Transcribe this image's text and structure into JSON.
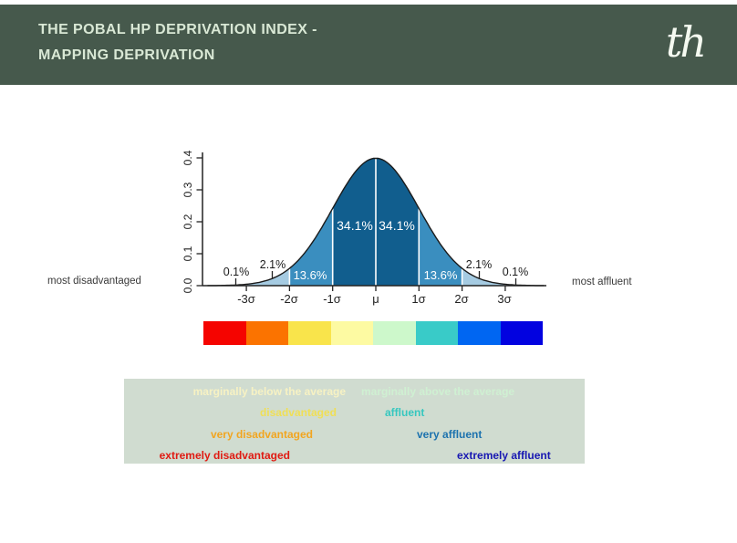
{
  "header": {
    "title_line1": "THE POBAL HP DEPRIVATION INDEX -",
    "title_line2": "MAPPING DEPRIVATION",
    "logo_text": "th",
    "bg_color": "#46594C",
    "title_color": "#D9E8D5",
    "logo_color": "#F5FAF1"
  },
  "chart_data": {
    "type": "area",
    "subtype": "standard-normal-distribution",
    "title": "",
    "xlabel": "",
    "ylabel": "",
    "ylim": [
      0.0,
      0.4
    ],
    "xlim_sigma": [
      -3.9,
      3.9
    ],
    "y_tick_labels": [
      "0.0",
      "0.1",
      "0.2",
      "0.3",
      "0.4"
    ],
    "x_tick_labels": [
      "-3σ",
      "-2σ",
      "-1σ",
      "μ",
      "1σ",
      "2σ",
      "3σ"
    ],
    "region_fills": [
      {
        "range": "below -3σ",
        "percent": 0.1,
        "color": "#BFD9EA"
      },
      {
        "range": "-3σ to -2σ",
        "percent": 2.1,
        "color": "#A5CBE2"
      },
      {
        "range": "-2σ to -1σ",
        "percent": 13.6,
        "color": "#3A8EBF"
      },
      {
        "range": "-1σ to μ",
        "percent": 34.1,
        "color": "#115E8E"
      },
      {
        "range": "μ to 1σ",
        "percent": 34.1,
        "color": "#115E8E"
      },
      {
        "range": "1σ to 2σ",
        "percent": 13.6,
        "color": "#3A8EBF"
      },
      {
        "range": "2σ to 3σ",
        "percent": 2.1,
        "color": "#A5CBE2"
      },
      {
        "range": "above 3σ",
        "percent": 0.1,
        "color": "#BFD9EA"
      }
    ],
    "inner_labels": [
      "34.1%",
      "34.1%",
      "13.6%",
      "13.6%"
    ],
    "outer_labels": [
      "0.1%",
      "2.1%",
      "2.1%",
      "0.1%"
    ],
    "curve_outline_color": "#1b1b1b",
    "separator_color": "#ffffff"
  },
  "annotations": {
    "left": "most disadvantaged",
    "right": "most affluent"
  },
  "colorbar": {
    "segments": [
      "#F50400",
      "#FB7300",
      "#F9E44B",
      "#FDFAA2",
      "#CDF8CB",
      "#39CBC8",
      "#0066F2",
      "#0202E0"
    ]
  },
  "legend": {
    "bg_color": "#D0DCD0",
    "rows": [
      {
        "left": {
          "label": "marginally below the average",
          "color": "#F7F2C3"
        },
        "right": {
          "label": "marginally above the average",
          "color": "#CFF0D2"
        }
      },
      {
        "left": {
          "label": "disadvantaged",
          "color": "#F0DF55"
        },
        "right": {
          "label": "affluent",
          "color": "#35C7BF"
        }
      },
      {
        "left": {
          "label": "very disadvantaged",
          "color": "#F2A51F"
        },
        "right": {
          "label": "very affluent",
          "color": "#1C72AE"
        }
      },
      {
        "left": {
          "label": "extremely disadvantaged",
          "color": "#E01A12"
        },
        "right": {
          "label": "extremely affluent",
          "color": "#1818B2"
        }
      }
    ]
  }
}
